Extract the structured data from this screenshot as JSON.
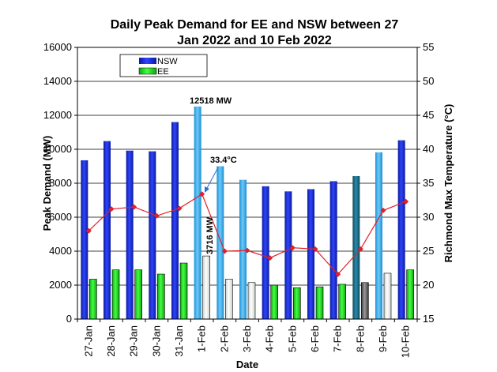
{
  "chart_data": {
    "type": "bar",
    "title_line1": "Daily Peak Demand for EE and NSW between 27",
    "title_line2": "Jan 2022 and 10 Feb 2022",
    "xlabel": "Date",
    "ylabel_left": "Peak Demand (MW)",
    "ylabel_right": "Richmond Max Temperature (°C)",
    "ylim_left": [
      0,
      16000
    ],
    "ylim_right": [
      15,
      55
    ],
    "left_ticks": [
      "0",
      "2000",
      "4000",
      "6000",
      "8000",
      "10000",
      "12000",
      "14000",
      "16000"
    ],
    "right_ticks": [
      "15",
      "20",
      "25",
      "30",
      "35",
      "40",
      "45",
      "50",
      "55"
    ],
    "categories": [
      "27-Jan",
      "28-Jan",
      "29-Jan",
      "30-Jan",
      "31-Jan",
      "1-Feb",
      "2-Feb",
      "3-Feb",
      "4-Feb",
      "5-Feb",
      "6-Feb",
      "7-Feb",
      "8-Feb",
      "9-Feb",
      "10-Feb"
    ],
    "series": [
      {
        "name": "NSW",
        "values": [
          9350,
          10480,
          9920,
          9880,
          11600,
          12518,
          9000,
          8200,
          7820,
          7520,
          7650,
          8120,
          8420,
          9820,
          10530
        ]
      },
      {
        "name": "EE",
        "values": [
          2350,
          2900,
          2900,
          2650,
          3300,
          3716,
          2350,
          2150,
          2000,
          1850,
          1900,
          2050,
          2150,
          2700,
          2900
        ]
      },
      {
        "name": "",
        "axis": "right",
        "values": [
          28.0,
          31.2,
          31.5,
          30.2,
          31.3,
          33.4,
          25.0,
          25.1,
          24.0,
          25.5,
          25.3,
          21.6,
          25.3,
          31.0,
          32.3
        ]
      }
    ],
    "bar_styles": [
      "weekday",
      "weekday",
      "weekday",
      "weekday",
      "weekday",
      "weekend-light",
      "weekend-light",
      "weekend-light",
      "weekday",
      "weekday",
      "weekday",
      "weekday",
      "dark-grad",
      "weekend-light",
      "weekday"
    ],
    "annotations": {
      "nsw_peak": "12518 MW",
      "ee_peak": "3716 MW",
      "temp_peak": "33.4°C"
    },
    "legend": {
      "position": "top-left"
    },
    "grid": "horizontal",
    "colors": {
      "nsw": "#1f2fd6",
      "nsw_light": "#3fb0f0",
      "nsw_dark": "#1a6c88",
      "ee": "#22dd22",
      "ee_light": "#eef2ef",
      "ee_dark": "#5a5a5a",
      "temp_line": "#e0202a"
    }
  }
}
